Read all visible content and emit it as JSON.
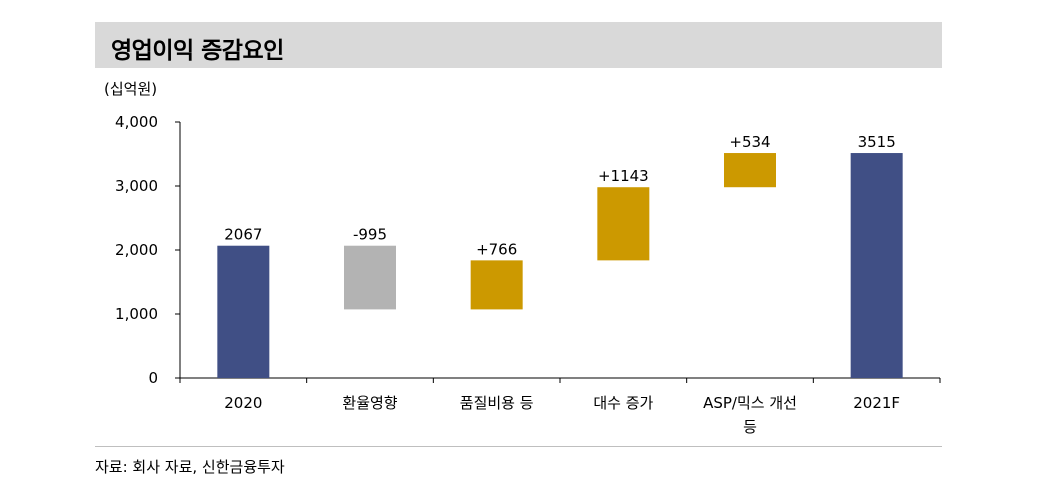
{
  "header": {
    "title": "영업이익 증감요인",
    "unit": "(십억원)"
  },
  "footer": {
    "source": "자료: 회사 자료, 신한금융투자"
  },
  "colors": {
    "total": "#404f85",
    "decrease": "#b3b3b3",
    "increase": "#cc9900",
    "title_bg": "#d9d9d9"
  },
  "chart_data": {
    "type": "bar",
    "subtype": "waterfall",
    "title": "영업이익 증감요인",
    "ylabel": "(십억원)",
    "ylim": [
      0,
      4000
    ],
    "yticks": [
      0,
      1000,
      2000,
      3000,
      4000
    ],
    "ytick_labels": [
      "0",
      "1,000",
      "2,000",
      "3,000",
      "4,000"
    ],
    "categories": [
      "2020",
      "환율영향",
      "품질비용 등",
      "대수 증가",
      "ASP/믹스 개선 등",
      "2021F"
    ],
    "category_lines": [
      [
        "2020"
      ],
      [
        "환율영향"
      ],
      [
        "품질비용 등"
      ],
      [
        "대수 증가"
      ],
      [
        "ASP/믹스 개선",
        "등"
      ],
      [
        "2021F"
      ]
    ],
    "bars": [
      {
        "kind": "total",
        "start": 0,
        "end": 2067,
        "label": "2067"
      },
      {
        "kind": "decrease",
        "start": 2067,
        "end": 1072,
        "label": "-995"
      },
      {
        "kind": "increase",
        "start": 1072,
        "end": 1838,
        "label": "+766"
      },
      {
        "kind": "increase",
        "start": 1838,
        "end": 2981,
        "label": "+1143"
      },
      {
        "kind": "increase",
        "start": 2981,
        "end": 3515,
        "label": "+534"
      },
      {
        "kind": "total",
        "start": 0,
        "end": 3515,
        "label": "3515"
      }
    ],
    "grid": false,
    "legend": "none"
  }
}
